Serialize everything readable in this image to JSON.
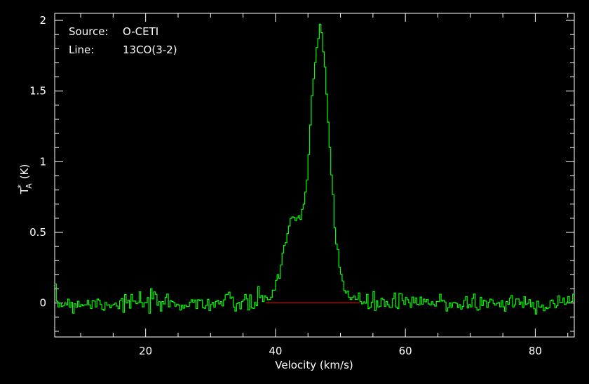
{
  "annotations": {
    "source_label": "Source:",
    "source_value": "O-CETI",
    "line_label": "Line:",
    "line_value": "13CO(3-2)"
  },
  "colors": {
    "background": "#000000",
    "axes": "#ffffff",
    "spectrum": "#00ff00",
    "baseline": "#ff0000"
  },
  "chart_data": {
    "type": "line",
    "xlabel": "Velocity (km/s)",
    "ylabel_main": "T",
    "ylabel_sub": "A",
    "ylabel_sup": "*",
    "ylabel_unit": "(K)",
    "xlim": [
      6,
      86
    ],
    "ylim": [
      -0.24,
      2.05
    ],
    "xticks": [
      20,
      40,
      60,
      80
    ],
    "yticks": [
      0,
      0.5,
      1,
      1.5,
      2
    ],
    "ytick_labels": [
      "0",
      "0.5",
      "1",
      "1.5",
      "2"
    ],
    "baseline": {
      "y": 0,
      "x_start": 38.5,
      "x_end": 53.0
    },
    "series": [
      {
        "style": "step",
        "x_step": 0.25,
        "profile": [
          [
            6,
            0.0
          ],
          [
            38,
            0.0
          ],
          [
            39,
            0.06
          ],
          [
            40,
            0.12
          ],
          [
            41,
            0.28
          ],
          [
            41.5,
            0.4
          ],
          [
            42,
            0.52
          ],
          [
            42.5,
            0.6
          ],
          [
            43,
            0.62
          ],
          [
            43.5,
            0.62
          ],
          [
            44,
            0.62
          ],
          [
            44.5,
            0.72
          ],
          [
            45,
            0.95
          ],
          [
            45.5,
            1.3
          ],
          [
            46,
            1.62
          ],
          [
            46.5,
            1.85
          ],
          [
            46.9,
            1.93
          ],
          [
            47.3,
            1.84
          ],
          [
            47.8,
            1.55
          ],
          [
            48.3,
            1.15
          ],
          [
            48.8,
            0.78
          ],
          [
            49.3,
            0.5
          ],
          [
            49.8,
            0.3
          ],
          [
            50.3,
            0.15
          ],
          [
            51,
            0.07
          ],
          [
            52,
            0.03
          ],
          [
            53,
            0.0
          ],
          [
            86,
            0.0
          ]
        ],
        "noise_rms": 0.035,
        "noise_seed": 7
      }
    ]
  }
}
